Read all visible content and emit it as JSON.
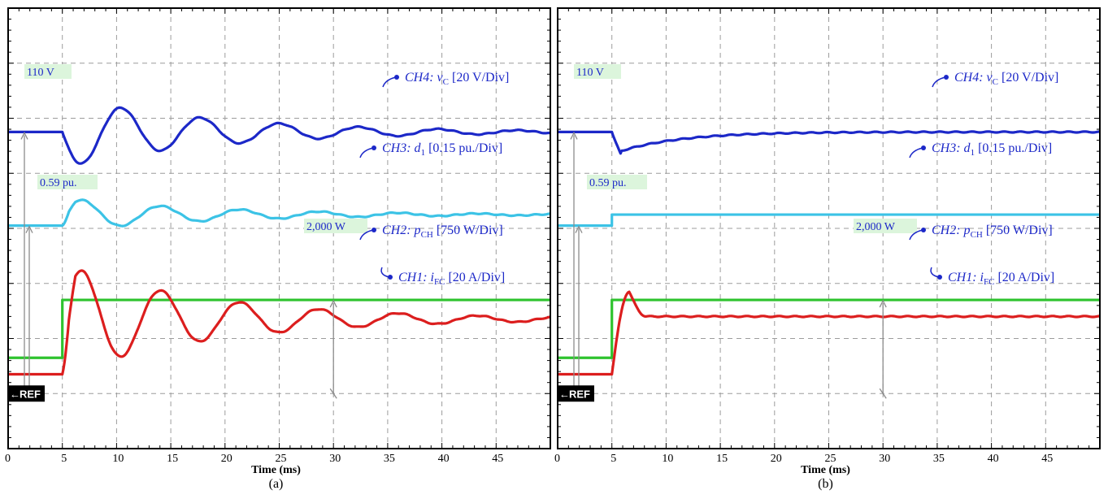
{
  "chart_data": [
    {
      "type": "line",
      "panel_caption": "(a)",
      "xlabel": "Time (ms)",
      "x_ticks": [
        "0",
        "5",
        "10",
        "15",
        "20",
        "25",
        "30",
        "35",
        "40",
        "45"
      ],
      "xlim": [
        0,
        50
      ],
      "grid": true,
      "divisions": {
        "x": 10,
        "y": 8
      },
      "reference_marker": "REF",
      "series": [
        {
          "name": "CH4: vC [20 V/Div]",
          "label_main": "CH4: v",
          "label_sub": "C",
          "label_tail": " [20 V/Div]",
          "color": "#1c28c8",
          "level_div": 5.75,
          "response": "oscillatory",
          "step_ms": 5,
          "amp_div": -0.65,
          "tau_ms": 14,
          "period_ms": 7.3
        },
        {
          "name": "CH3: d1 [0.15 pu./Div]",
          "label_main": "CH3: d",
          "label_sub": "1",
          "label_tail": " [0.15 pu./Div]",
          "color": "#3cc3e6",
          "level_div": 4.05,
          "response": "oscillatory",
          "step_ms": 5,
          "amp_div": 0.3,
          "final_div": 4.25,
          "tau_ms": 14,
          "period_ms": 7.3
        },
        {
          "name": "CH2: pCH [750 W/Div]",
          "label_main": "CH2: p",
          "label_sub": "CH",
          "label_tail": " [750 W/Div]",
          "color": "#2ec32e",
          "level_div": 1.65,
          "response": "step",
          "step_ms": 5,
          "final_div": 2.7
        },
        {
          "name": "CH1: iFC [20 A/Div]",
          "label_main": "CH1: i",
          "label_sub": "FC",
          "label_tail": " [20 A/Div]",
          "color": "#dc1e1e",
          "level_div": 1.35,
          "response": "oscillatory",
          "step_ms": 5,
          "amp_div": 1.0,
          "final_div": 2.35,
          "tau_ms": 14,
          "period_ms": 7.3
        }
      ],
      "annotations": [
        {
          "text": "110 V",
          "target": "CH4"
        },
        {
          "text": "0.59 pu.",
          "target": "CH3"
        },
        {
          "text": "2,000 W",
          "target": "CH2"
        }
      ]
    },
    {
      "type": "line",
      "panel_caption": "(b)",
      "xlabel": "Time (ms)",
      "x_ticks": [
        "0",
        "5",
        "10",
        "15",
        "20",
        "25",
        "30",
        "35",
        "40",
        "45"
      ],
      "xlim": [
        0,
        50
      ],
      "grid": true,
      "divisions": {
        "x": 10,
        "y": 8
      },
      "reference_marker": "REF",
      "series": [
        {
          "name": "CH4: vC [20 V/Div]",
          "label_main": "CH4: v",
          "label_sub": "C",
          "label_tail": " [20 V/Div]",
          "color": "#1c28c8",
          "level_div": 5.75,
          "response": "damped",
          "step_ms": 5,
          "dip_div": -0.45
        },
        {
          "name": "CH3: d1 [0.15 pu./Div]",
          "label_main": "CH3: d",
          "label_sub": "1",
          "label_tail": " [0.15 pu./Div]",
          "color": "#3cc3e6",
          "level_div": 4.05,
          "response": "step",
          "step_ms": 5,
          "final_div": 4.25
        },
        {
          "name": "CH2: pCH [750 W/Div]",
          "label_main": "CH2: p",
          "label_sub": "CH",
          "label_tail": " [750 W/Div]",
          "color": "#2ec32e",
          "level_div": 1.65,
          "response": "step",
          "step_ms": 5,
          "final_div": 2.7
        },
        {
          "name": "CH1: iFC [20 A/Div]",
          "label_main": "CH1: i",
          "label_sub": "FC",
          "label_tail": " [20 A/Div]",
          "color": "#dc1e1e",
          "level_div": 1.35,
          "response": "overshoot",
          "step_ms": 5,
          "final_div": 2.4,
          "peak_div": 2.85
        }
      ],
      "annotations": [
        {
          "text": "110 V",
          "target": "CH4"
        },
        {
          "text": "0.59 pu.",
          "target": "CH3"
        },
        {
          "text": "2,000 W",
          "target": "CH2"
        }
      ]
    }
  ]
}
